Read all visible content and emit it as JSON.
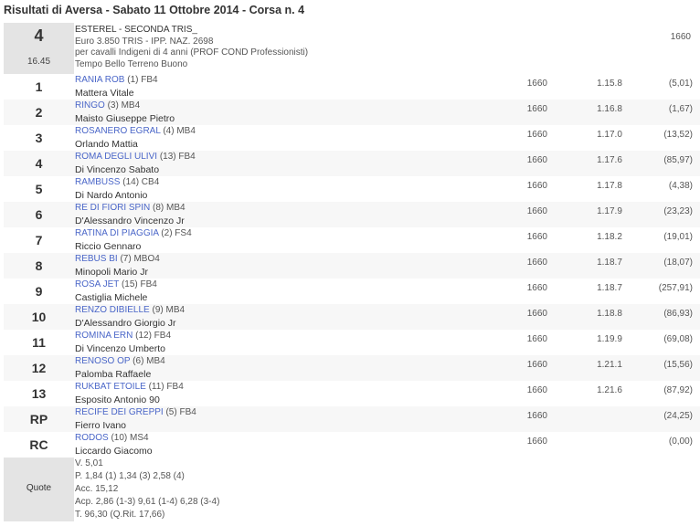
{
  "title": "Risultati di Aversa - Sabato 11 Ottobre 2014 - Corsa n. 4",
  "race": {
    "number": "4",
    "time": "16.45",
    "name": "ESTEREL - SECONDA TRIS_",
    "prize": "Euro 3.850 TRIS - IPP. NAZ. 2698",
    "conditions": "per cavalli Indigeni di 4 anni (PROF COND Professionisti)",
    "weather": "Tempo Bello Terreno Buono",
    "distance": "1660"
  },
  "results": [
    {
      "pos": "1",
      "horse": "RANIA ROB",
      "info": "(1) FB4",
      "jockey": "Mattera Vitale",
      "dist": "1660",
      "time": "1.15.8",
      "odds": "(5,01)"
    },
    {
      "pos": "2",
      "horse": "RINGO",
      "info": "(3) MB4",
      "jockey": "Maisto Giuseppe Pietro",
      "dist": "1660",
      "time": "1.16.8",
      "odds": "(1,67)"
    },
    {
      "pos": "3",
      "horse": "ROSANERO EGRAL",
      "info": "(4) MB4",
      "jockey": "Orlando Mattia",
      "dist": "1660",
      "time": "1.17.0",
      "odds": "(13,52)"
    },
    {
      "pos": "4",
      "horse": "ROMA DEGLI ULIVI",
      "info": "(13) FB4",
      "jockey": "Di Vincenzo Sabato",
      "dist": "1660",
      "time": "1.17.6",
      "odds": "(85,97)"
    },
    {
      "pos": "5",
      "horse": "RAMBUSS",
      "info": "(14) CB4",
      "jockey": "Di Nardo Antonio",
      "dist": "1660",
      "time": "1.17.8",
      "odds": "(4,38)"
    },
    {
      "pos": "6",
      "horse": "RE DI FIORI SPIN",
      "info": "(8) MB4",
      "jockey": "D'Alessandro Vincenzo Jr",
      "dist": "1660",
      "time": "1.17.9",
      "odds": "(23,23)"
    },
    {
      "pos": "7",
      "horse": "RATINA DI PIAGGIA",
      "info": "(2) FS4",
      "jockey": "Riccio Gennaro",
      "dist": "1660",
      "time": "1.18.2",
      "odds": "(19,01)"
    },
    {
      "pos": "8",
      "horse": "REBUS BI",
      "info": "(7) MBO4",
      "jockey": "Minopoli Mario Jr",
      "dist": "1660",
      "time": "1.18.7",
      "odds": "(18,07)"
    },
    {
      "pos": "9",
      "horse": "ROSA JET",
      "info": "(15) FB4",
      "jockey": "Castiglia Michele",
      "dist": "1660",
      "time": "1.18.7",
      "odds": "(257,91)"
    },
    {
      "pos": "10",
      "horse": "RENZO DIBIELLE",
      "info": "(9) MB4",
      "jockey": "D'Alessandro Giorgio Jr",
      "dist": "1660",
      "time": "1.18.8",
      "odds": "(86,93)"
    },
    {
      "pos": "11",
      "horse": "ROMINA ERN",
      "info": "(12) FB4",
      "jockey": "Di Vincenzo Umberto",
      "dist": "1660",
      "time": "1.19.9",
      "odds": "(69,08)"
    },
    {
      "pos": "12",
      "horse": "RENOSO OP",
      "info": "(6) MB4",
      "jockey": "Palomba Raffaele",
      "dist": "1660",
      "time": "1.21.1",
      "odds": "(15,56)"
    },
    {
      "pos": "13",
      "horse": "RUKBAT ETOILE",
      "info": "(11) FB4",
      "jockey": "Esposito Antonio 90",
      "dist": "1660",
      "time": "1.21.6",
      "odds": "(87,92)"
    },
    {
      "pos": "RP",
      "horse": "RECIFE DEI GREPPI",
      "info": "(5) FB4",
      "jockey": "Fierro Ivano",
      "dist": "1660",
      "time": "",
      "odds": "(24,25)"
    },
    {
      "pos": "RC",
      "horse": "RODOS",
      "info": "(10) MS4",
      "jockey": "Liccardo Giacomo",
      "dist": "1660",
      "time": "",
      "odds": "(0,00)"
    }
  ],
  "quote": {
    "label": "Quote",
    "lines": [
      "V. 5,01",
      "P. 1,84 (1)  1,34 (3)  2,58 (4)",
      "Acc. 15,12",
      "Acp. 2,86 (1-3)  9,61 (1-4)  6,28 (3-4)",
      "T. 96,30   (Q.Rit. 17,66)"
    ]
  },
  "colors": {
    "link": "#4a66c8",
    "cell_gray": "#e4e4e4",
    "row_alt": "#f7f7f7"
  }
}
